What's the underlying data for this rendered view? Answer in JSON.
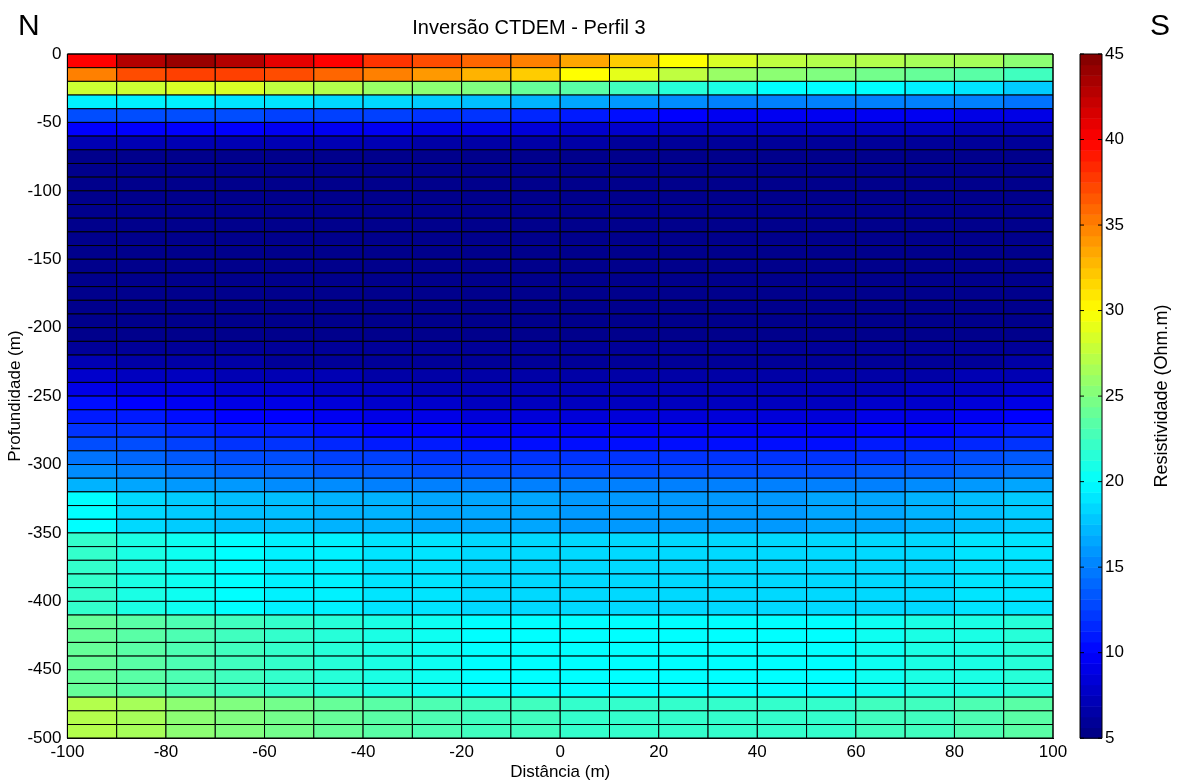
{
  "chart_data": {
    "type": "heatmap",
    "title": "Inversão CTDEM - Perfil 3",
    "xlabel": "Distância (m)",
    "ylabel": "Profundidade (m)",
    "clabel": "Resistividade (Ohm.m)",
    "annotations": [
      "N",
      "S"
    ],
    "xlim": [
      -100,
      100
    ],
    "xticks": [
      -100,
      -80,
      -60,
      -40,
      -20,
      0,
      20,
      40,
      60,
      80,
      100
    ],
    "ylim": [
      -500,
      0
    ],
    "yticks": [
      -500,
      -450,
      -400,
      -350,
      -300,
      -250,
      -200,
      -150,
      -100,
      -50,
      0
    ],
    "clim": [
      5,
      45
    ],
    "cticks": [
      5,
      10,
      15,
      20,
      25,
      30,
      35,
      40,
      45
    ],
    "cells": [
      [
        40,
        43,
        44,
        43,
        41,
        40,
        38,
        37,
        36,
        35,
        33.5,
        32,
        30,
        28.5,
        27.5,
        27,
        27,
        26.5,
        26.5,
        25.5
      ],
      [
        35,
        37,
        37.5,
        37.5,
        37,
        36,
        35,
        34,
        33,
        32,
        30,
        29,
        27.5,
        26,
        25.5,
        25,
        24.5,
        24,
        23.5,
        22.5
      ],
      [
        28,
        28,
        28.5,
        28.5,
        27.5,
        27,
        26,
        25.5,
        25,
        24,
        23.5,
        22.5,
        21.5,
        21,
        20,
        20,
        20,
        19.5,
        19,
        18
      ],
      [
        19.5,
        19.5,
        19.5,
        19,
        19,
        18.5,
        18.5,
        18,
        17.5,
        17,
        16.5,
        16,
        15.5,
        15,
        15,
        15,
        15,
        15,
        15,
        14.5
      ],
      [
        13,
        13,
        13,
        13,
        12.5,
        12.5,
        12.5,
        12,
        12,
        11.5,
        11,
        10.5,
        10,
        9.5,
        9.5,
        9.5,
        9.5,
        9.5,
        9,
        9
      ],
      [
        10,
        10,
        10,
        10,
        9.5,
        9.5,
        9.5,
        9,
        9,
        8.5,
        8,
        8,
        7.5,
        7.5,
        7.5,
        7.5,
        7.5,
        7.5,
        7,
        7
      ],
      [
        7,
        7,
        7,
        7,
        7,
        7,
        7,
        6.5,
        6.5,
        6.5,
        6.5,
        6,
        6,
        6,
        6,
        6,
        6,
        6,
        6,
        6
      ],
      [
        5.5,
        5.5,
        5.5,
        5.5,
        5.5,
        5.5,
        5.5,
        5.5,
        5.5,
        5.5,
        5.5,
        5.5,
        5.5,
        5.5,
        5.5,
        5.5,
        5.5,
        5.5,
        5.5,
        5.5
      ],
      [
        5.5,
        5.5,
        5.5,
        5.5,
        5.5,
        5.5,
        5.5,
        5.5,
        5.5,
        5.5,
        5.5,
        5.5,
        5.5,
        5.5,
        5.5,
        5.5,
        5.5,
        5.5,
        5.5,
        5.5
      ],
      [
        5.5,
        5.5,
        5.5,
        5.5,
        5.5,
        5.5,
        5.5,
        5.5,
        5.5,
        5.5,
        5.5,
        5.5,
        5.5,
        5.5,
        5.5,
        5.5,
        5.5,
        5.5,
        5.5,
        5.5
      ],
      [
        5.5,
        5.5,
        5.5,
        5.5,
        5.5,
        5.5,
        5.5,
        5.5,
        5.5,
        5.5,
        5.5,
        5.5,
        5.5,
        5.5,
        5.5,
        5.5,
        5.5,
        5.5,
        5.5,
        5.5
      ],
      [
        5.5,
        5.5,
        5.5,
        5.5,
        5.5,
        5.5,
        5.5,
        5.5,
        5.5,
        5.5,
        5.5,
        5.5,
        5.5,
        5.5,
        5.5,
        5.5,
        5.5,
        5.5,
        5.5,
        5.5
      ],
      [
        5.5,
        5.5,
        5.5,
        5.5,
        5.5,
        5.5,
        5.5,
        5.5,
        5.5,
        5.5,
        5.5,
        5.5,
        5.5,
        5.5,
        5.5,
        5.5,
        5.5,
        5.5,
        5.5,
        5.5
      ],
      [
        5.5,
        5.5,
        5.5,
        5.5,
        5.5,
        5.5,
        5.5,
        5.5,
        5.5,
        5.5,
        5.5,
        5.5,
        5.5,
        5.5,
        5.5,
        5.5,
        5.5,
        5.5,
        5.5,
        5.5
      ],
      [
        5.5,
        5.5,
        5.5,
        5.5,
        5.5,
        5.5,
        5.5,
        5.5,
        5.5,
        5.5,
        5.5,
        5.5,
        5.5,
        5.5,
        5.5,
        5.5,
        5.5,
        5.5,
        5.5,
        5.5
      ],
      [
        5.5,
        5.5,
        5.5,
        5.5,
        5.5,
        5.5,
        5.5,
        5.5,
        5.5,
        5.5,
        5.5,
        5.5,
        5.5,
        5.5,
        5.5,
        5.5,
        5.5,
        5.5,
        5.5,
        5.5
      ],
      [
        5.5,
        5.5,
        5.5,
        5.5,
        5.5,
        5.5,
        5.5,
        5.5,
        5.5,
        5.5,
        5.5,
        5.5,
        5.5,
        5.5,
        5.5,
        5.5,
        5.5,
        5.5,
        5.5,
        5.5
      ],
      [
        5.5,
        5.5,
        5.5,
        5.5,
        5.5,
        5.5,
        5.5,
        5.5,
        5.5,
        5.5,
        5.5,
        5.5,
        5.5,
        5.5,
        5.5,
        5.5,
        5.5,
        5.5,
        5.5,
        5.5
      ],
      [
        5.5,
        5.5,
        5.5,
        5.5,
        5.5,
        5.5,
        5.5,
        5.5,
        5.5,
        5.5,
        5.5,
        5.5,
        5.5,
        5.5,
        5.5,
        5.5,
        5.5,
        5.5,
        5.5,
        5.5
      ],
      [
        5.5,
        5.5,
        5.5,
        5.5,
        5.5,
        5.5,
        5.5,
        5.5,
        5.5,
        5.5,
        5.5,
        5.5,
        5.5,
        5.5,
        5.5,
        5.5,
        5.5,
        5.5,
        5.5,
        5.5
      ],
      [
        5.5,
        5.5,
        5.5,
        5.5,
        5.5,
        5.5,
        5.5,
        5.5,
        5.5,
        5.5,
        5.5,
        5.5,
        5.5,
        5.5,
        5.5,
        5.5,
        5.5,
        5.5,
        5.5,
        5.5
      ],
      [
        6,
        6,
        6,
        6,
        6,
        6,
        6,
        6,
        6,
        6,
        6,
        6,
        6,
        6,
        6,
        6,
        6,
        6,
        6,
        6
      ],
      [
        7,
        6.5,
        6.5,
        6.5,
        6,
        6,
        6,
        6,
        6,
        6,
        6,
        6,
        6,
        6,
        6,
        6,
        6,
        6,
        6,
        6.5
      ],
      [
        8,
        7.5,
        7.5,
        7,
        7,
        7,
        6.5,
        6.5,
        6.5,
        6.5,
        6.5,
        6.5,
        6.5,
        6.5,
        6.5,
        6.5,
        6.5,
        6.5,
        7,
        7
      ],
      [
        9,
        8.5,
        8.5,
        8,
        8,
        7.5,
        7.5,
        7,
        7,
        7,
        7,
        7,
        7,
        7,
        7,
        7,
        7,
        7.5,
        7.5,
        8
      ],
      [
        10.5,
        10,
        9.5,
        9,
        9,
        8.5,
        8,
        8,
        7.5,
        7.5,
        7.5,
        7.5,
        7.5,
        7.5,
        7.5,
        7.5,
        8,
        8,
        8.5,
        9
      ],
      [
        11,
        11,
        10.5,
        10,
        10,
        9.5,
        9,
        9,
        8.5,
        8.5,
        8.5,
        8.5,
        8.5,
        8.5,
        8.5,
        8.5,
        9,
        9,
        9.5,
        10
      ],
      [
        12,
        12,
        11.5,
        11,
        11,
        10.5,
        10,
        10,
        9.5,
        9.5,
        9.5,
        9.5,
        9.5,
        9.5,
        9.5,
        9.5,
        10,
        10,
        10.5,
        11
      ],
      [
        13,
        13,
        12.5,
        12,
        12,
        11.5,
        11,
        11,
        10.5,
        10.5,
        10.5,
        10.5,
        10.5,
        10.5,
        10.5,
        10.5,
        11,
        11,
        11.5,
        12
      ],
      [
        14.5,
        14,
        13.5,
        13,
        13,
        12.5,
        12.5,
        12,
        12,
        12,
        12,
        12,
        12,
        12,
        12,
        12,
        12,
        12.5,
        13,
        13.5
      ],
      [
        15.5,
        15,
        14.5,
        14,
        14,
        13.5,
        13.5,
        13,
        13,
        13,
        13,
        13,
        13,
        13,
        13,
        13,
        13.5,
        13.5,
        14,
        14.5
      ],
      [
        17,
        16.5,
        16,
        16,
        15.5,
        15.5,
        15,
        15,
        15,
        15,
        15,
        15,
        15,
        15,
        15,
        15,
        15,
        15.5,
        16,
        16.5
      ],
      [
        20,
        18.5,
        18,
        17.5,
        17.5,
        17,
        17,
        16.5,
        16.5,
        16.5,
        16,
        16,
        16,
        16,
        16,
        16.5,
        16.5,
        17,
        17.5,
        18
      ],
      [
        20,
        18.5,
        18,
        17.5,
        17.5,
        17,
        17,
        16.5,
        16.5,
        16.5,
        16,
        16,
        16,
        16,
        16,
        16.5,
        16.5,
        17,
        17.5,
        18
      ],
      [
        20,
        18.5,
        18,
        17.5,
        17.5,
        17,
        17,
        16.5,
        16.5,
        16.5,
        16,
        16,
        16,
        16,
        16,
        16.5,
        16.5,
        17,
        17.5,
        18
      ],
      [
        22,
        21,
        20.5,
        20,
        19.5,
        19.5,
        19,
        19,
        18.5,
        18.5,
        18.5,
        18.5,
        18.5,
        18.5,
        18.5,
        18.5,
        18.5,
        18.5,
        19,
        19
      ],
      [
        22,
        21,
        20.5,
        20,
        19.5,
        19.5,
        19,
        19,
        18.5,
        18.5,
        18.5,
        18.5,
        18.5,
        18.5,
        18.5,
        18.5,
        18.5,
        18.5,
        19,
        19
      ],
      [
        22,
        21,
        20.5,
        20,
        19.5,
        19.5,
        19,
        19,
        18.5,
        18.5,
        18.5,
        18.5,
        18.5,
        18.5,
        18.5,
        18.5,
        18.5,
        18.5,
        19,
        19
      ],
      [
        22,
        21,
        20.5,
        20,
        19.5,
        19.5,
        19,
        19,
        18.5,
        18.5,
        18.5,
        18.5,
        18.5,
        18.5,
        18.5,
        18.5,
        18.5,
        18.5,
        19,
        19
      ],
      [
        22,
        21,
        20.5,
        20,
        19.5,
        19.5,
        19,
        19,
        18.5,
        18.5,
        18.5,
        18.5,
        18.5,
        18.5,
        18.5,
        18.5,
        18.5,
        18.5,
        19,
        19
      ],
      [
        22,
        21,
        20.5,
        20,
        19.5,
        19.5,
        19,
        19,
        18.5,
        18.5,
        18.5,
        18.5,
        18.5,
        18.5,
        18.5,
        18.5,
        18.5,
        18.5,
        19,
        19
      ],
      [
        24,
        23.5,
        23,
        22.5,
        22,
        21.5,
        21,
        20.5,
        20,
        20,
        20,
        20,
        20,
        20,
        20,
        20,
        20.5,
        21,
        21,
        21.5
      ],
      [
        24,
        23.5,
        23,
        22.5,
        22,
        21.5,
        21,
        20.5,
        20,
        20,
        20,
        20,
        20,
        20,
        20,
        20,
        20.5,
        21,
        21,
        21.5
      ],
      [
        24,
        23.5,
        23,
        22.5,
        22,
        21.5,
        21,
        20.5,
        20,
        20,
        20,
        20,
        20,
        20,
        20,
        20,
        20.5,
        21,
        21,
        21.5
      ],
      [
        24,
        23.5,
        23,
        22.5,
        22,
        21.5,
        21,
        20.5,
        20,
        20,
        20,
        20,
        20,
        20,
        20,
        20,
        20.5,
        21,
        21,
        21.5
      ],
      [
        24,
        23.5,
        23,
        22.5,
        22,
        21.5,
        21,
        20.5,
        20,
        20,
        20,
        20,
        20,
        20,
        20,
        20,
        20.5,
        21,
        21,
        21.5
      ],
      [
        24,
        23.5,
        23,
        22.5,
        22,
        21.5,
        21,
        20.5,
        20,
        20,
        20,
        20,
        20,
        20,
        20,
        20,
        20.5,
        21,
        21,
        21.5
      ],
      [
        27,
        26.5,
        25.5,
        25,
        24.5,
        24,
        23.5,
        23,
        22.5,
        22.5,
        22,
        22,
        22,
        22,
        22,
        22,
        22.5,
        22.5,
        23,
        23.5
      ],
      [
        27,
        26.5,
        25.5,
        25,
        24.5,
        24,
        23.5,
        23,
        22.5,
        22.5,
        22,
        22,
        22,
        22,
        22,
        22,
        22.5,
        22.5,
        23,
        23.5
      ],
      [
        27,
        26.5,
        25.5,
        25,
        24.5,
        24,
        23.5,
        23,
        22.5,
        22.5,
        22,
        22,
        22,
        22,
        22,
        22,
        22.5,
        22.5,
        23,
        23.5
      ]
    ]
  }
}
